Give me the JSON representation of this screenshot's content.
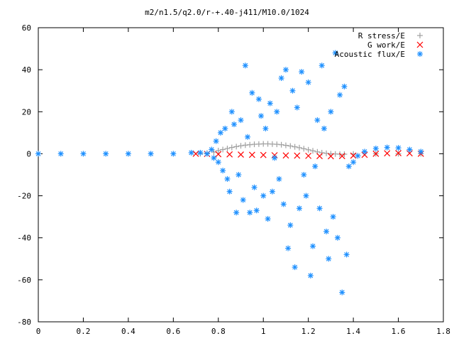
{
  "chart_data": {
    "type": "scatter",
    "title": "m2/n1.5/q2.0/r-+.40-j411/M10.0/1024",
    "xlabel": "",
    "ylabel": "",
    "xlim": [
      0,
      1.8
    ],
    "ylim": [
      -80,
      60
    ],
    "xticks": [
      "0",
      "0.2",
      "0.4",
      "0.6",
      "0.8",
      "1",
      "1.2",
      "1.4",
      "1.6",
      "1.8"
    ],
    "yticks": [
      "60",
      "40",
      "20",
      "0",
      "-20",
      "-40",
      "-60",
      "-80"
    ],
    "grid": false,
    "legend_position": "top-right",
    "series": [
      {
        "name": "R stress/E",
        "marker": "+",
        "color": "#a0a0a0",
        "points": [
          [
            0.72,
            0.0
          ],
          [
            0.75,
            0.3
          ],
          [
            0.78,
            0.8
          ],
          [
            0.8,
            1.5
          ],
          [
            0.82,
            2.0
          ],
          [
            0.84,
            2.5
          ],
          [
            0.86,
            3.0
          ],
          [
            0.88,
            3.4
          ],
          [
            0.9,
            3.8
          ],
          [
            0.92,
            4.1
          ],
          [
            0.94,
            4.3
          ],
          [
            0.96,
            4.5
          ],
          [
            0.98,
            4.6
          ],
          [
            1.0,
            4.7
          ],
          [
            1.02,
            4.7
          ],
          [
            1.04,
            4.6
          ],
          [
            1.06,
            4.5
          ],
          [
            1.08,
            4.3
          ],
          [
            1.1,
            4.0
          ],
          [
            1.12,
            3.7
          ],
          [
            1.14,
            3.3
          ],
          [
            1.16,
            2.9
          ],
          [
            1.18,
            2.4
          ],
          [
            1.2,
            1.9
          ],
          [
            1.22,
            1.4
          ],
          [
            1.24,
            0.9
          ],
          [
            1.26,
            0.5
          ],
          [
            1.28,
            0.2
          ],
          [
            1.3,
            0.0
          ],
          [
            1.32,
            -0.1
          ],
          [
            1.34,
            -0.2
          ],
          [
            1.36,
            -0.2
          ],
          [
            1.4,
            -0.1
          ],
          [
            1.5,
            0.0
          ],
          [
            1.6,
            0.0
          ],
          [
            1.7,
            0.0
          ]
        ]
      },
      {
        "name": "G work/E",
        "marker": "x",
        "color": "#ff0000",
        "points": [
          [
            0.7,
            0.0
          ],
          [
            0.75,
            -0.1
          ],
          [
            0.8,
            -0.2
          ],
          [
            0.85,
            -0.3
          ],
          [
            0.9,
            -0.4
          ],
          [
            0.95,
            -0.5
          ],
          [
            1.0,
            -0.6
          ],
          [
            1.05,
            -0.7
          ],
          [
            1.1,
            -0.8
          ],
          [
            1.15,
            -0.9
          ],
          [
            1.2,
            -1.0
          ],
          [
            1.25,
            -1.1
          ],
          [
            1.3,
            -1.2
          ],
          [
            1.35,
            -1.1
          ],
          [
            1.4,
            -0.9
          ],
          [
            1.45,
            -0.5
          ],
          [
            1.5,
            0.0
          ],
          [
            1.55,
            0.2
          ],
          [
            1.6,
            0.3
          ],
          [
            1.65,
            0.2
          ],
          [
            1.7,
            0.0
          ]
        ]
      },
      {
        "name": "Acoustic flux/E",
        "marker": "*",
        "color": "#1e90ff",
        "points": [
          [
            0.0,
            0
          ],
          [
            0.1,
            0
          ],
          [
            0.2,
            0
          ],
          [
            0.3,
            0
          ],
          [
            0.4,
            0
          ],
          [
            0.5,
            0
          ],
          [
            0.6,
            0
          ],
          [
            0.68,
            0.5
          ],
          [
            0.72,
            0.5
          ],
          [
            0.75,
            0.0
          ],
          [
            0.77,
            2.0
          ],
          [
            0.78,
            -2.0
          ],
          [
            0.79,
            6.0
          ],
          [
            0.8,
            -4.0
          ],
          [
            0.81,
            10.0
          ],
          [
            0.82,
            -8.0
          ],
          [
            0.83,
            12.0
          ],
          [
            0.84,
            -12.0
          ],
          [
            0.85,
            -18.0
          ],
          [
            0.86,
            20.0
          ],
          [
            0.87,
            14.0
          ],
          [
            0.88,
            -28.0
          ],
          [
            0.89,
            -10.0
          ],
          [
            0.9,
            16.0
          ],
          [
            0.91,
            -22.0
          ],
          [
            0.92,
            42.0
          ],
          [
            0.93,
            8.0
          ],
          [
            0.94,
            -28.0
          ],
          [
            0.95,
            29.0
          ],
          [
            0.96,
            -16.0
          ],
          [
            0.97,
            -27.0
          ],
          [
            0.98,
            26.0
          ],
          [
            0.99,
            18.0
          ],
          [
            1.0,
            -20.0
          ],
          [
            1.01,
            12.0
          ],
          [
            1.02,
            -31.0
          ],
          [
            1.03,
            24.0
          ],
          [
            1.04,
            -18.0
          ],
          [
            1.05,
            -2.0
          ],
          [
            1.06,
            20.0
          ],
          [
            1.07,
            -12.0
          ],
          [
            1.08,
            36.0
          ],
          [
            1.09,
            -24.0
          ],
          [
            1.1,
            40.0
          ],
          [
            1.11,
            -45.0
          ],
          [
            1.12,
            -34.0
          ],
          [
            1.13,
            30.0
          ],
          [
            1.14,
            -54.0
          ],
          [
            1.15,
            22.0
          ],
          [
            1.16,
            -26.0
          ],
          [
            1.17,
            39.0
          ],
          [
            1.18,
            -10.0
          ],
          [
            1.19,
            -20.0
          ],
          [
            1.2,
            34.0
          ],
          [
            1.21,
            -58.0
          ],
          [
            1.22,
            -44.0
          ],
          [
            1.23,
            -6.0
          ],
          [
            1.24,
            16.0
          ],
          [
            1.25,
            -26.0
          ],
          [
            1.26,
            42.0
          ],
          [
            1.27,
            12.0
          ],
          [
            1.28,
            -37.0
          ],
          [
            1.29,
            -50.0
          ],
          [
            1.3,
            20.0
          ],
          [
            1.31,
            -30.0
          ],
          [
            1.32,
            48.0
          ],
          [
            1.33,
            -40.0
          ],
          [
            1.34,
            28.0
          ],
          [
            1.35,
            -66.0
          ],
          [
            1.36,
            32.0
          ],
          [
            1.37,
            -48.0
          ],
          [
            1.38,
            -6.0
          ],
          [
            1.4,
            -4.0
          ],
          [
            1.42,
            -1.0
          ],
          [
            1.45,
            1.0
          ],
          [
            1.5,
            2.5
          ],
          [
            1.55,
            3.0
          ],
          [
            1.6,
            2.8
          ],
          [
            1.65,
            2.0
          ],
          [
            1.7,
            1.0
          ]
        ]
      }
    ]
  }
}
